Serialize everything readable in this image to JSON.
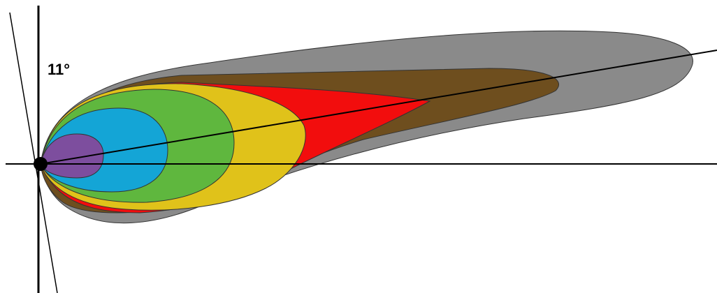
{
  "label": "11°"
}
